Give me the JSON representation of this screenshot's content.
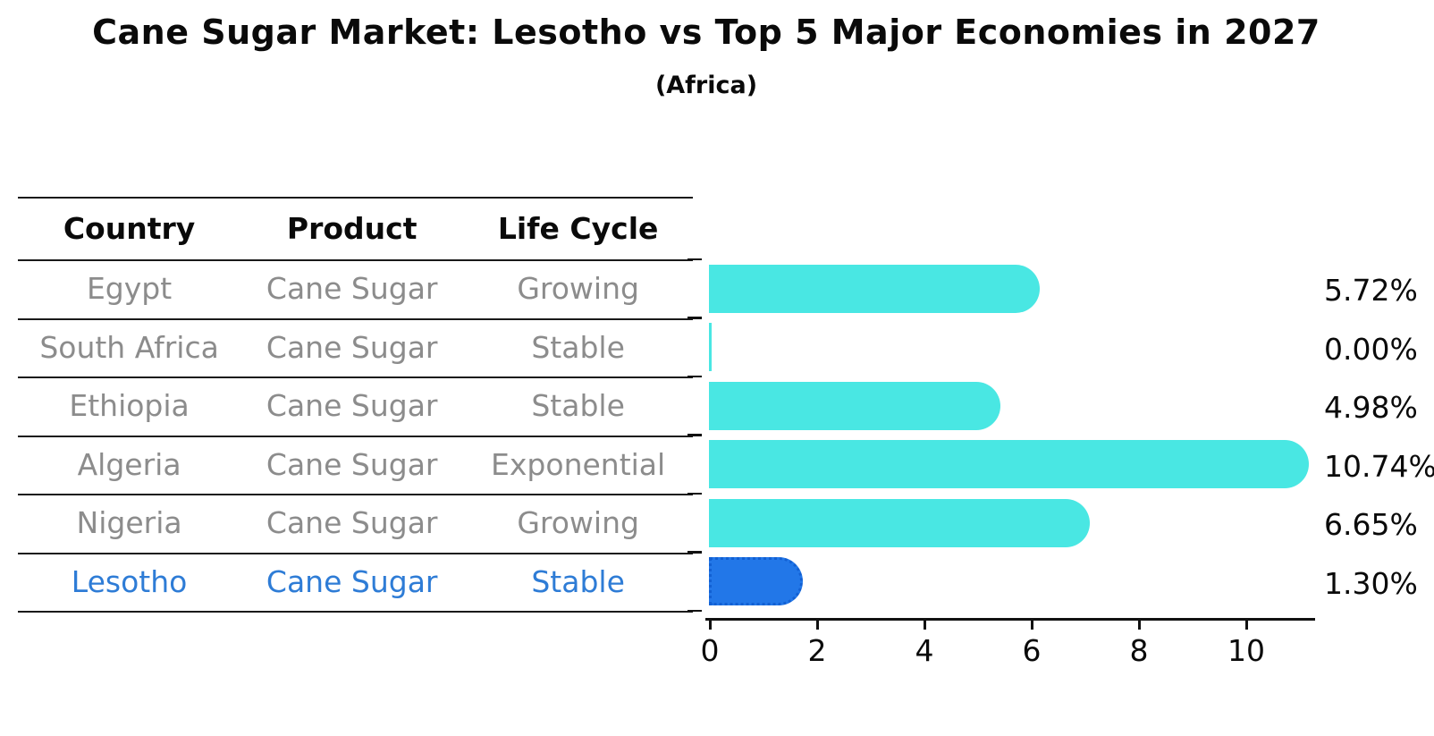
{
  "title": "Cane Sugar Market: Lesotho vs Top 5 Major Economies in 2027",
  "subtitle": "(Africa)",
  "table": {
    "columns": [
      "Country",
      "Product",
      "Life Cycle"
    ],
    "rows": [
      {
        "country": "Egypt",
        "product": "Cane Sugar",
        "life_cycle": "Growing",
        "highlight": false
      },
      {
        "country": "South Africa",
        "product": "Cane Sugar",
        "life_cycle": "Stable",
        "highlight": false
      },
      {
        "country": "Ethiopia",
        "product": "Cane Sugar",
        "life_cycle": "Stable",
        "highlight": false
      },
      {
        "country": "Algeria",
        "product": "Cane Sugar",
        "life_cycle": "Exponential",
        "highlight": false
      },
      {
        "country": "Nigeria",
        "product": "Cane Sugar",
        "life_cycle": "Growing",
        "highlight": false
      },
      {
        "country": "Lesotho",
        "product": "Cane Sugar",
        "life_cycle": "Stable",
        "highlight": true
      }
    ]
  },
  "chart_data": {
    "type": "bar",
    "orientation": "horizontal",
    "title": "Cane Sugar Market: Lesotho vs Top 5 Major Economies in 2027",
    "subtitle": "(Africa)",
    "categories": [
      "Egypt",
      "South Africa",
      "Ethiopia",
      "Algeria",
      "Nigeria",
      "Lesotho"
    ],
    "values": [
      5.72,
      0.0,
      4.98,
      10.74,
      6.65,
      1.3
    ],
    "value_labels": [
      "5.72%",
      "0.00%",
      "4.98%",
      "10.74%",
      "6.65%",
      "1.30%"
    ],
    "xlim": [
      0,
      11.3
    ],
    "x_ticks": [
      0,
      2,
      4,
      6,
      8,
      10
    ],
    "grid": false,
    "legend": false,
    "highlight_index": 5
  },
  "colors": {
    "bar": "#49e7e3",
    "highlight_bar": "#2277e8",
    "highlight_text": "#2e7cd6",
    "cell_text": "#8c8c8c",
    "axis": "#111111"
  }
}
